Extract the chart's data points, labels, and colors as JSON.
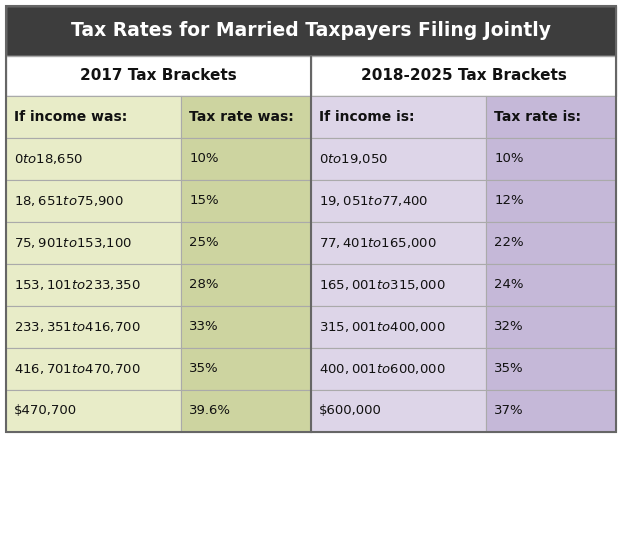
{
  "title": "Tax Rates for Married Taxpayers Filing Jointly",
  "title_bg": "#3d3d3d",
  "title_color": "#ffffff",
  "header2017": "2017 Tax Brackets",
  "header2018": "2018-2025 Tax Brackets",
  "col_headers": [
    "If income was:",
    "Tax rate was:",
    "If income is:",
    "Tax rate is:"
  ],
  "rows_2017": [
    [
      "$0 to $18,650",
      "10%"
    ],
    [
      "$18,651 to $75,900",
      "15%"
    ],
    [
      "$75,901 to $153,100",
      "25%"
    ],
    [
      "$153,101 to $233,350",
      "28%"
    ],
    [
      "$233,351 to $416,700",
      "33%"
    ],
    [
      "$416,701 to $470,700",
      "35%"
    ],
    [
      "$470,700",
      "39.6%"
    ]
  ],
  "rows_2018": [
    [
      "$0 to $19,050",
      "10%"
    ],
    [
      "$19,051 to $77,400",
      "12%"
    ],
    [
      "$77,401 to $165,000",
      "22%"
    ],
    [
      "$165,001 to $315,000",
      "24%"
    ],
    [
      "$315,001 to $400,000",
      "32%"
    ],
    [
      "$400,001 to $600,000",
      "35%"
    ],
    [
      "$600,000",
      "37%"
    ]
  ],
  "color_income_2017": "#e8ecc8",
  "color_rate_2017": "#cdd4a0",
  "color_income_2018": "#ddd5e8",
  "color_rate_2018": "#c5b8d8",
  "border_color": "#aaaaaa",
  "text_color": "#111111",
  "bg_color": "#ffffff",
  "section_header_bg": "#ffffff",
  "fig_w": 6.22,
  "fig_h": 5.34,
  "dpi": 100
}
